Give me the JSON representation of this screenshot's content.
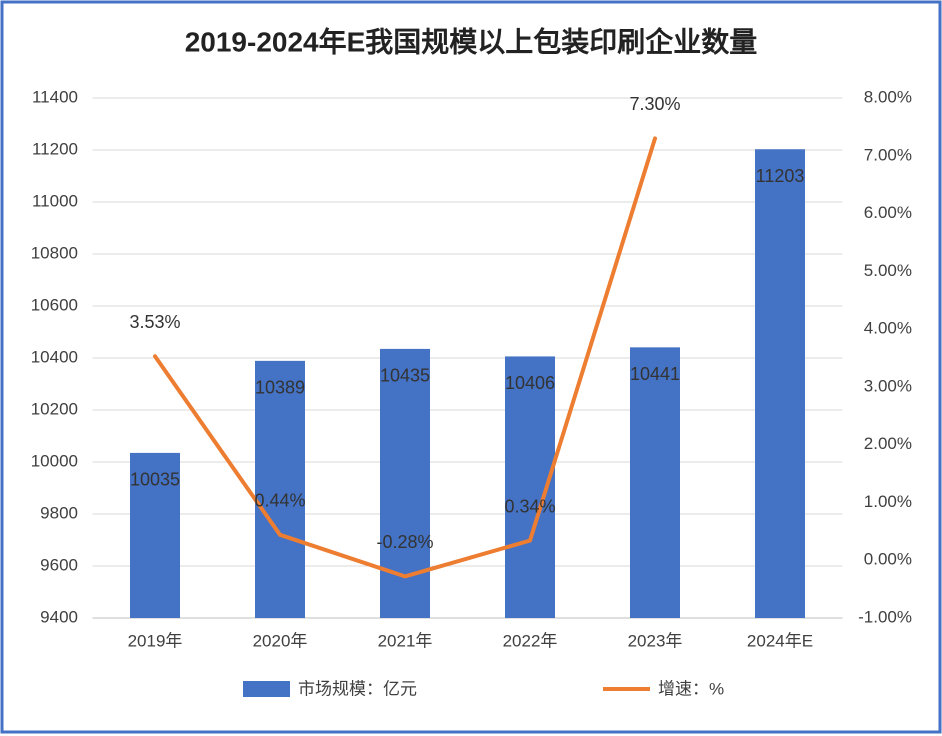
{
  "chart_data": {
    "type": "bar-line",
    "title": "2019-2024年E我国规模以上包装印刷企业数量",
    "categories": [
      "2019年",
      "2020年",
      "2021年",
      "2022年",
      "2023年",
      "2024年E"
    ],
    "series": [
      {
        "name": "市场规模：亿元",
        "type": "bar",
        "color": "#4472c4",
        "values": [
          10035,
          10389,
          10435,
          10406,
          10441,
          11203
        ]
      },
      {
        "name": "增速：%",
        "type": "line",
        "axis": "y2",
        "color": "#ed7d31",
        "values": [
          3.53,
          0.44,
          -0.28,
          0.34,
          7.3,
          null
        ],
        "value_labels": [
          "3.53%",
          "0.44%",
          "-0.28%",
          "0.34%",
          "7.30%",
          null
        ]
      }
    ],
    "ylim": [
      9400,
      11400
    ],
    "yticks": [
      9400,
      9600,
      9800,
      10000,
      10200,
      10400,
      10600,
      10800,
      11000,
      11200,
      11400
    ],
    "y2lim": [
      -1,
      8
    ],
    "y2ticks": [
      {
        "value": -1,
        "label": "-1.00%"
      },
      {
        "value": 0,
        "label": "0.00%"
      },
      {
        "value": 1,
        "label": "1.00%"
      },
      {
        "value": 2,
        "label": "2.00%"
      },
      {
        "value": 3,
        "label": "3.00%"
      },
      {
        "value": 4,
        "label": "4.00%"
      },
      {
        "value": 5,
        "label": "5.00%"
      },
      {
        "value": 6,
        "label": "6.00%"
      },
      {
        "value": 7,
        "label": "7.00%"
      },
      {
        "value": 8,
        "label": "8.00%"
      }
    ],
    "grid": true
  }
}
